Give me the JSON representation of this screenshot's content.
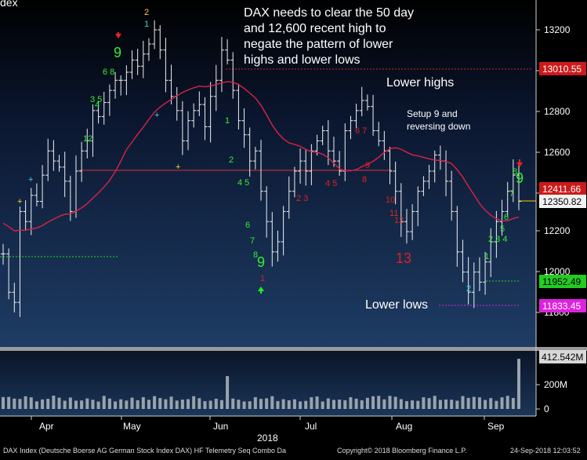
{
  "chart_data": {
    "type": "ohlc",
    "title_fragment": "dex",
    "annotations": {
      "headline": [
        "DAX needs to clear the 50 day",
        "and 12,600 recent high to",
        "negate the pattern of lower",
        "highs and lower lows"
      ],
      "lower_highs": "Lower highs",
      "setup_note": [
        "Setup 9 and",
        "reversing down"
      ],
      "lower_lows": "Lower lows"
    },
    "price_axis": {
      "ticks": [
        "13200",
        "13000",
        "12800",
        "12600",
        "12400",
        "12200",
        "12000",
        "11800"
      ],
      "ylim": [
        11650,
        13300
      ]
    },
    "volume_axis": {
      "ticks": [
        "200M",
        "0"
      ]
    },
    "price_tags": {
      "resistance_high": "13010.55",
      "sma_50": "12411.66",
      "last_price": "12350.82",
      "low_green": "11952.49",
      "low_magenta": "11833.45",
      "volume_last": "412.542M"
    },
    "x_axis": {
      "months": [
        "Apr",
        "May",
        "Jun",
        "Jul",
        "Aug",
        "Sep"
      ],
      "year": "2018"
    },
    "footer": {
      "left": "DAX Index (Deutsche Boerse AG German Stock Index DAX) HF Telemetry Seq Combo  Da",
      "center": "Copyright© 2018 Bloomberg Finance L.P.",
      "right": "24-Sep-2018 12:03:52"
    },
    "series": [
      {
        "name": "DAX",
        "close": [
          12090,
          11900,
          11850,
          12300,
          12250,
          12380,
          12350,
          12480,
          12600,
          12550,
          12520,
          12450,
          12300,
          12500,
          12600,
          12650,
          12800,
          12770,
          12840,
          12900,
          12950,
          12950,
          12990,
          13050,
          13020,
          13080,
          13130,
          13200,
          13100,
          12950,
          12870,
          12800,
          12650,
          12750,
          12800,
          12830,
          12720,
          12870,
          12950,
          13100,
          13050,
          12900,
          12750,
          12680,
          12550,
          12600,
          12400,
          12250,
          12100,
          12150,
          12300,
          12400,
          12500,
          12550,
          12500,
          12600,
          12650,
          12700,
          12600,
          12550,
          12500,
          12700,
          12750,
          12800,
          12850,
          12820,
          12700,
          12650,
          12600,
          12500,
          12400,
          12250,
          12200,
          12300,
          12400,
          12450,
          12500,
          12580,
          12550,
          12450,
          12300,
          12100,
          12000,
          11900,
          12000,
          11950,
          12050,
          12150,
          12250,
          12300,
          12400,
          12480,
          12350
        ]
      }
    ]
  }
}
